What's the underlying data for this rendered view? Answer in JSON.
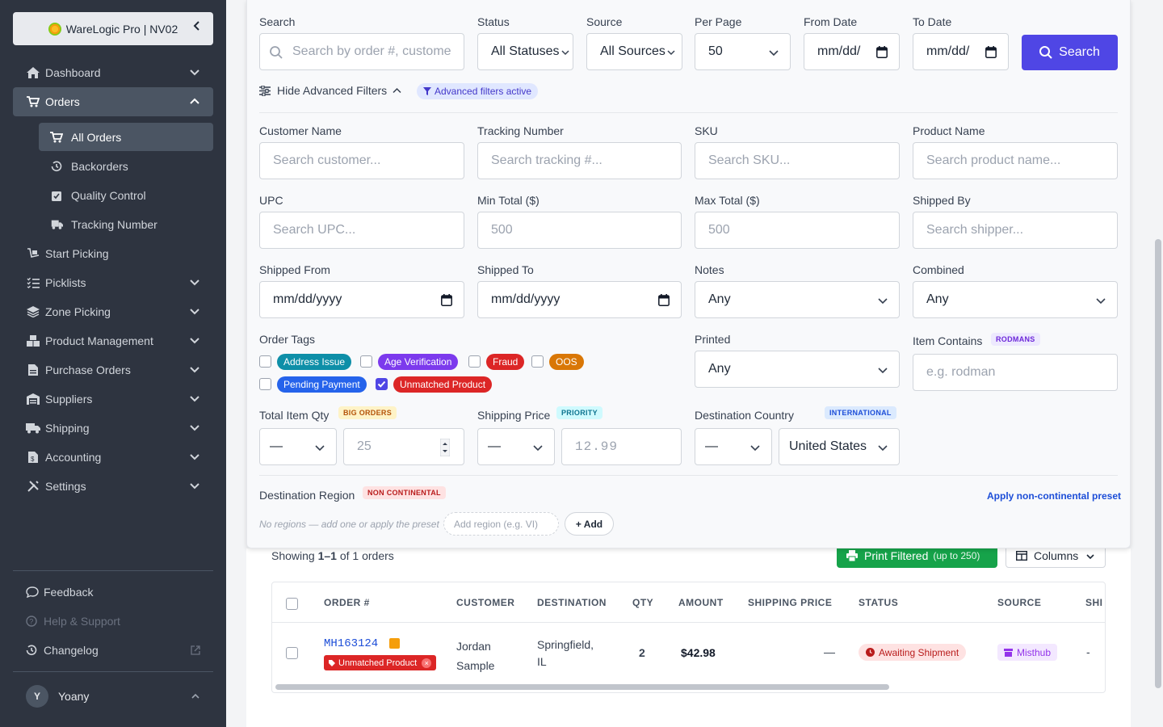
{
  "sidebar": {
    "brand": "WareLogic Pro | NV02",
    "items": [
      {
        "label": "Dashboard"
      },
      {
        "label": "Orders"
      },
      {
        "label": "Start Picking"
      },
      {
        "label": "Picklists"
      },
      {
        "label": "Zone Picking"
      },
      {
        "label": "Product Management"
      },
      {
        "label": "Purchase Orders"
      },
      {
        "label": "Suppliers"
      },
      {
        "label": "Shipping"
      },
      {
        "label": "Accounting"
      },
      {
        "label": "Settings"
      }
    ],
    "orders_sub": [
      {
        "label": "All Orders"
      },
      {
        "label": "Backorders"
      },
      {
        "label": "Quality Control"
      },
      {
        "label": "Tracking Number"
      }
    ],
    "footer": [
      {
        "label": "Feedback"
      },
      {
        "label": "Help & Support"
      },
      {
        "label": "Changelog"
      }
    ],
    "user": {
      "initial": "Y",
      "name": "Yoany"
    }
  },
  "filters": {
    "search_label": "Search",
    "search_placeholder": "Search by order #, customer...",
    "search_display": "Search by order #, custome",
    "status_label": "Status",
    "status_value": "All Statuses",
    "source_label": "Source",
    "source_value": "All Sources",
    "perpage_label": "Per Page",
    "perpage_value": "50",
    "from_label": "From Date",
    "from_value": "mm/dd/",
    "to_label": "To Date",
    "to_value": "mm/dd/",
    "search_button": "Search",
    "advanced_toggle": "Hide Advanced Filters",
    "advanced_active": "Advanced filters active",
    "customer_label": "Customer Name",
    "customer_placeholder": "Search customer...",
    "tracking_label": "Tracking Number",
    "tracking_placeholder": "Search tracking #...",
    "sku_label": "SKU",
    "sku_placeholder": "Search SKU...",
    "product_label": "Product Name",
    "product_placeholder": "Search product name...",
    "upc_label": "UPC",
    "upc_placeholder": "Search UPC...",
    "min_label": "Min Total ($)",
    "min_placeholder": "500",
    "max_label": "Max Total ($)",
    "max_placeholder": "500",
    "shippedby_label": "Shipped By",
    "shippedby_placeholder": "Search shipper...",
    "shippedfrom_label": "Shipped From",
    "shippedfrom_value": "mm/dd/yyyy",
    "shippedto_label": "Shipped To",
    "shippedto_value": "mm/dd/yyyy",
    "notes_label": "Notes",
    "notes_value": "Any",
    "combined_label": "Combined",
    "combined_value": "Any",
    "tags_label": "Order Tags",
    "tags": [
      {
        "label": "Address Issue",
        "color": "#0e8fa8",
        "checked": false
      },
      {
        "label": "Age Verification",
        "color": "#7c3aed",
        "checked": false
      },
      {
        "label": "Fraud",
        "color": "#dc2626",
        "checked": false
      },
      {
        "label": "OOS",
        "color": "#d97706",
        "checked": false
      },
      {
        "label": "Pending Payment",
        "color": "#2563eb",
        "checked": false
      },
      {
        "label": "Unmatched Product",
        "color": "#dc2626",
        "checked": true
      }
    ],
    "printed_label": "Printed",
    "printed_value": "Any",
    "itemcontains_label": "Item Contains",
    "itemcontains_pill": "RODMANS",
    "itemcontains_placeholder": "e.g. rodman",
    "qty_label": "Total Item Qty",
    "qty_pill": "BIG ORDERS",
    "qty_op": "—",
    "qty_value": "25",
    "shipprice_label": "Shipping Price",
    "shipprice_pill": "PRIORITY",
    "shipprice_op": "—",
    "shipprice_value": "12.99",
    "country_label": "Destination Country",
    "country_pill": "INTERNATIONAL",
    "country_op": "—",
    "country_value": "United States",
    "region_label": "Destination Region",
    "region_pill": "NON CONTINENTAL",
    "region_preset": "Apply non-continental preset",
    "region_empty": "No regions — add one or apply the preset",
    "region_placeholder": "Add region (e.g. VI)",
    "region_add": "+ Add"
  },
  "results": {
    "showing_prefix": "Showing ",
    "showing_range": "1–1",
    "showing_suffix": " of 1 orders",
    "print_button": "Print Filtered",
    "print_hint": "(up to 250)",
    "columns_button": "Columns"
  },
  "table": {
    "headers": [
      "ORDER #",
      "CUSTOMER",
      "DESTINATION",
      "QTY",
      "AMOUNT",
      "SHIPPING PRICE",
      "STATUS",
      "SOURCE",
      "SHI"
    ],
    "rows": [
      {
        "order": "MH163124",
        "tag": "Unmatched Product",
        "customer_first": "Jordan",
        "customer_last": "Sample",
        "dest_city": "Springfield,",
        "dest_state": "IL",
        "qty": "2",
        "amount": "$42.98",
        "shipping": "—",
        "status": "Awaiting Shipment",
        "source": "Misthub",
        "ship": "-"
      }
    ]
  },
  "colors": {
    "primary": "#4f46e5",
    "success": "#16a34a",
    "sidebar": "#2e3440",
    "danger": "#dc2626"
  }
}
